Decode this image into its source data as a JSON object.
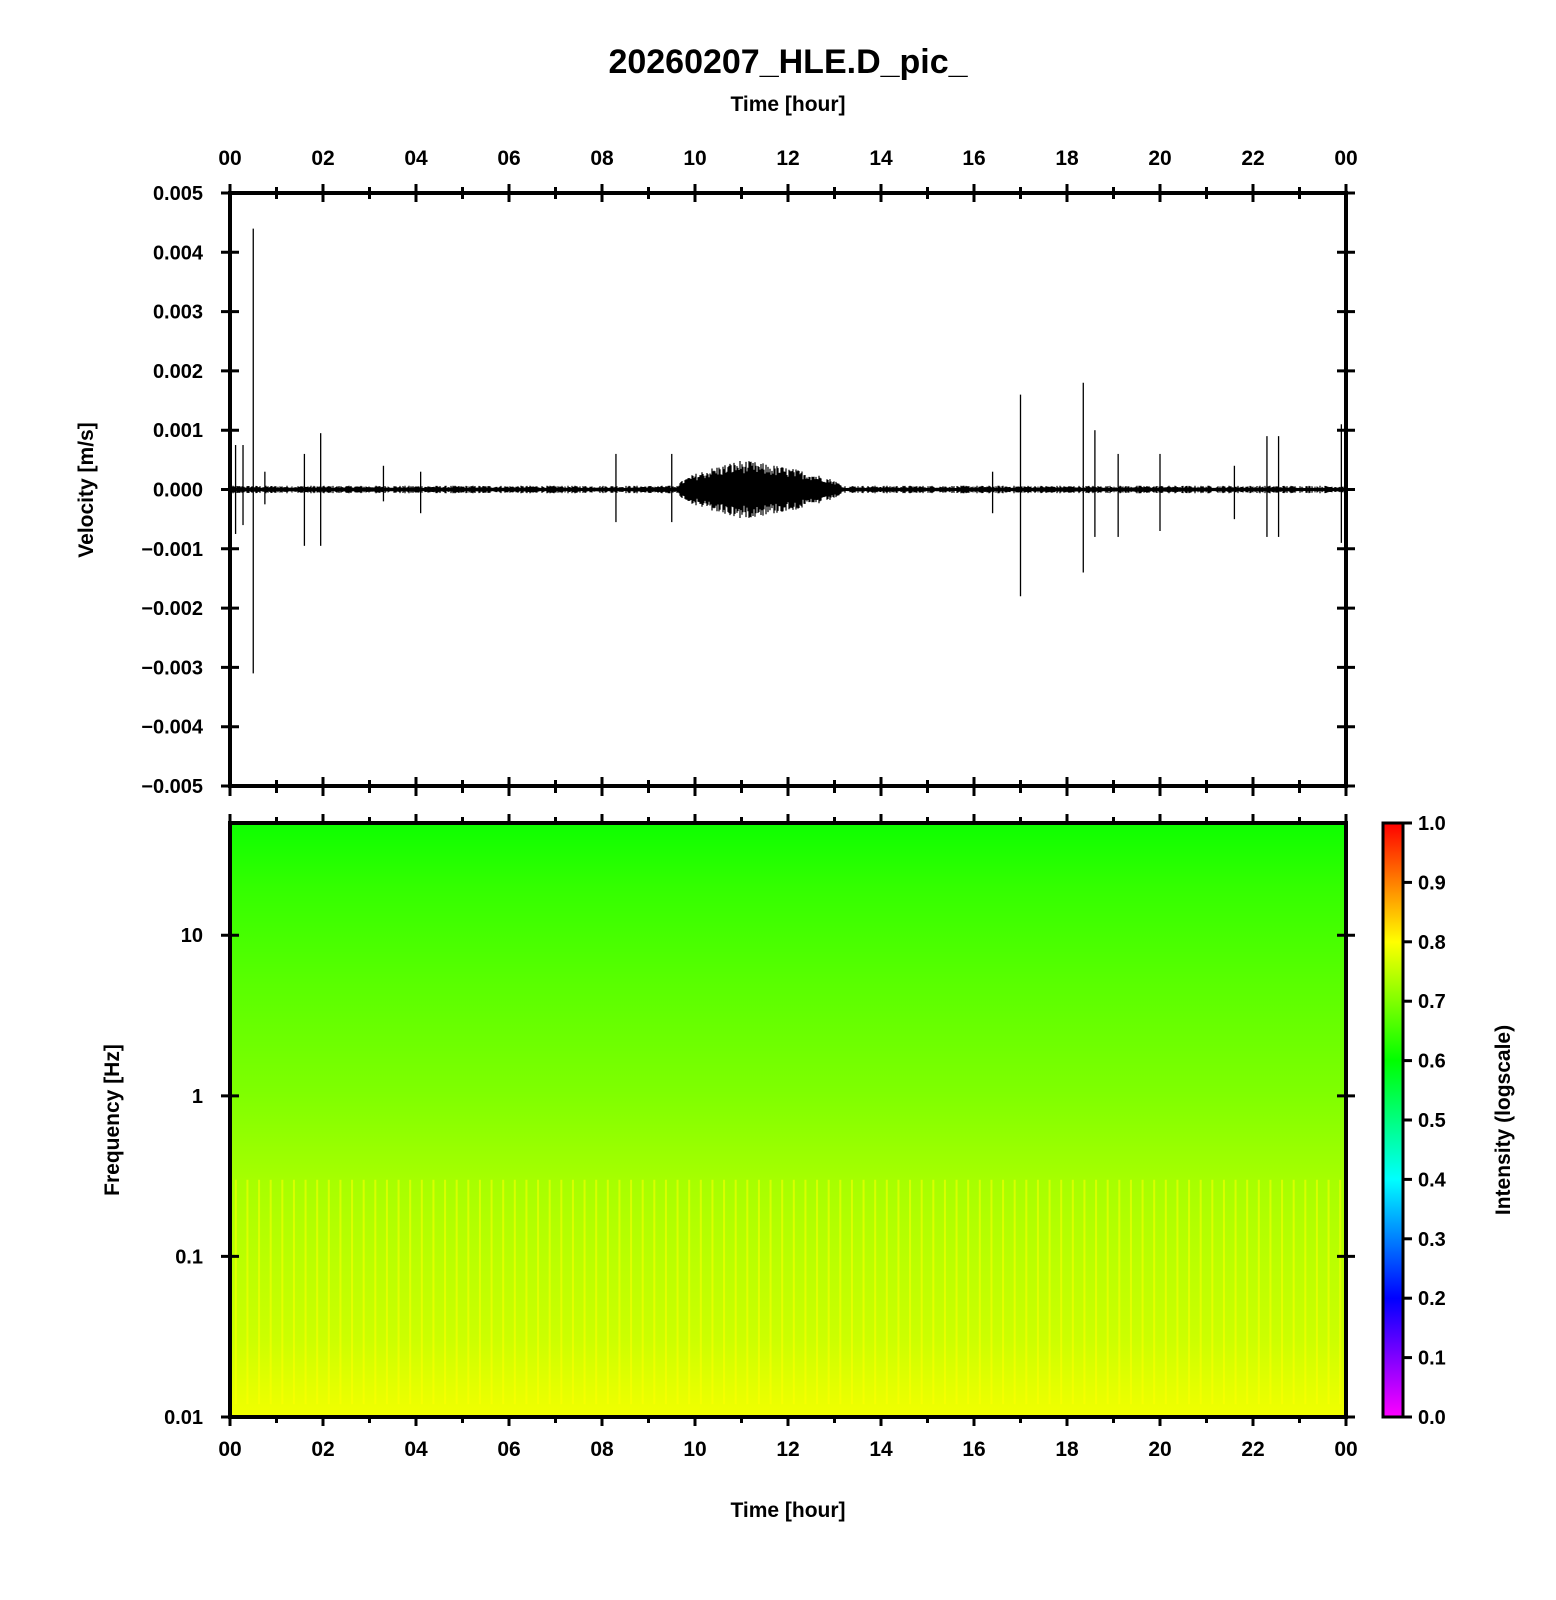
{
  "title": "20260207_HLE.D_pic_",
  "chart_data": [
    {
      "type": "line",
      "name": "waveform",
      "xlabel": "Time [hour]",
      "ylabel": "Velocity [m/s]",
      "xlim": [
        0,
        24
      ],
      "ylim": [
        -0.005,
        0.005
      ],
      "x_tick_labels": [
        "00",
        "02",
        "04",
        "06",
        "08",
        "10",
        "12",
        "14",
        "16",
        "18",
        "20",
        "22",
        "00"
      ],
      "y_tick_labels": [
        "0.005",
        "0.004",
        "0.003",
        "0.002",
        "0.001",
        "0.000",
        "−0.001",
        "−0.002",
        "−0.003",
        "−0.004",
        "−0.005"
      ],
      "background_noise_amplitude": 4e-05,
      "spikes": [
        {
          "x": 0.12,
          "min": -0.00075,
          "max": 0.00075
        },
        {
          "x": 0.28,
          "min": -0.0006,
          "max": 0.00075
        },
        {
          "x": 0.5,
          "min": -0.0031,
          "max": 0.0044
        },
        {
          "x": 0.75,
          "min": -0.00025,
          "max": 0.0003
        },
        {
          "x": 1.6,
          "min": -0.00095,
          "max": 0.0006
        },
        {
          "x": 1.95,
          "min": -0.00095,
          "max": 0.00095
        },
        {
          "x": 3.3,
          "min": -0.0002,
          "max": 0.0004
        },
        {
          "x": 4.1,
          "min": -0.0004,
          "max": 0.0003
        },
        {
          "x": 8.3,
          "min": -0.00055,
          "max": 0.0006
        },
        {
          "x": 9.5,
          "min": -0.00055,
          "max": 0.0006
        },
        {
          "x": 16.4,
          "min": -0.0004,
          "max": 0.0003
        },
        {
          "x": 17.0,
          "min": -0.0018,
          "max": 0.0016
        },
        {
          "x": 18.35,
          "min": -0.0014,
          "max": 0.0018
        },
        {
          "x": 18.6,
          "min": -0.0008,
          "max": 0.001
        },
        {
          "x": 19.1,
          "min": -0.0008,
          "max": 0.0006
        },
        {
          "x": 20.0,
          "min": -0.0007,
          "max": 0.0006
        },
        {
          "x": 21.6,
          "min": -0.0005,
          "max": 0.0004
        },
        {
          "x": 22.3,
          "min": -0.0008,
          "max": 0.0009
        },
        {
          "x": 22.55,
          "min": -0.0008,
          "max": 0.0009
        },
        {
          "x": 23.9,
          "min": -0.0009,
          "max": 0.0011
        }
      ],
      "burst": {
        "x_start": 9.6,
        "x_end": 13.2,
        "peak_x": 11.0,
        "peak_amplitude": 0.0005
      }
    },
    {
      "type": "heatmap",
      "name": "spectrogram",
      "xlabel": "Time [hour]",
      "ylabel": "Frequency [Hz]",
      "xlim": [
        0,
        24
      ],
      "ylim": [
        0.01,
        50
      ],
      "y_scale": "log",
      "x_tick_labels": [
        "00",
        "02",
        "04",
        "06",
        "08",
        "10",
        "12",
        "14",
        "16",
        "18",
        "20",
        "22",
        "00"
      ],
      "y_tick_labels": [
        "10",
        "1",
        "0.1",
        "0.01"
      ],
      "intensity_profile": [
        {
          "freq": 0.01,
          "intensity": 0.79
        },
        {
          "freq": 0.03,
          "intensity": 0.76
        },
        {
          "freq": 0.15,
          "intensity": 0.74
        },
        {
          "freq": 0.3,
          "intensity": 0.73
        },
        {
          "freq": 1.0,
          "intensity": 0.7
        },
        {
          "freq": 5.0,
          "intensity": 0.67
        },
        {
          "freq": 20.0,
          "intensity": 0.64
        },
        {
          "freq": 50.0,
          "intensity": 0.61
        }
      ],
      "colorbar": {
        "label": "Intensity (logscale)",
        "range": [
          0,
          1
        ],
        "tick_labels": [
          "1.0",
          "0.9",
          "0.8",
          "0.7",
          "0.6",
          "0.5",
          "0.4",
          "0.3",
          "0.2",
          "0.1",
          "0.0"
        ],
        "colormap": [
          "#ff00ff",
          "#0000ff",
          "#00ffff",
          "#00ff00",
          "#ffff00",
          "#ff0000"
        ]
      }
    }
  ]
}
